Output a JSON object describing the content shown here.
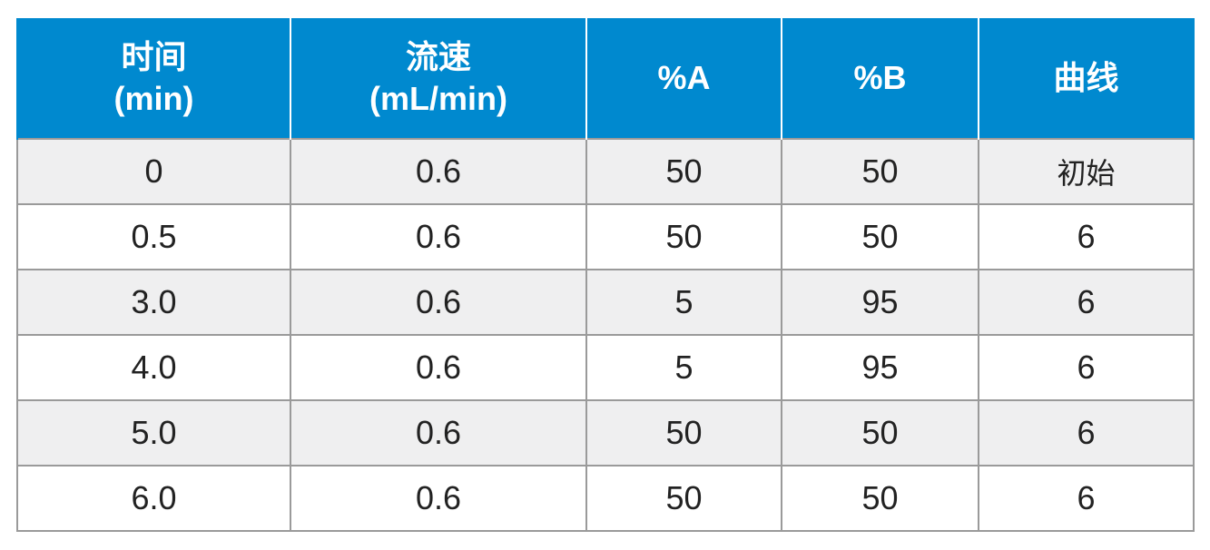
{
  "table": {
    "headers": [
      {
        "line1": "时间",
        "line2": "(min)"
      },
      {
        "line1": "流速",
        "line2": "(mL/min)"
      },
      {
        "line1": "%A",
        "line2": ""
      },
      {
        "line1": "%B",
        "line2": ""
      },
      {
        "line1": "曲线",
        "line2": ""
      }
    ],
    "rows": [
      [
        "0",
        "0.6",
        "50",
        "50",
        "初始"
      ],
      [
        "0.5",
        "0.6",
        "50",
        "50",
        "6"
      ],
      [
        "3.0",
        "0.6",
        "5",
        "95",
        "6"
      ],
      [
        "4.0",
        "0.6",
        "5",
        "95",
        "6"
      ],
      [
        "5.0",
        "0.6",
        "50",
        "50",
        "6"
      ],
      [
        "6.0",
        "0.6",
        "50",
        "50",
        "6"
      ]
    ]
  },
  "colors": {
    "header_bg": "#0089cf",
    "header_text": "#ffffff",
    "row_alt_bg": "#efeff0",
    "grid_line": "#9a9a9a"
  }
}
